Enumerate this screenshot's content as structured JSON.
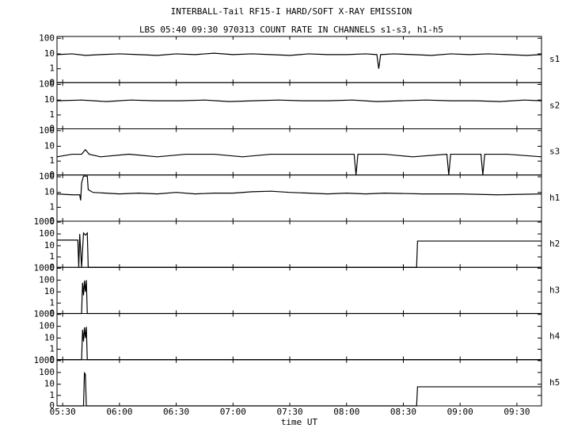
{
  "chart_data": {
    "type": "line",
    "title": "INTERBALL-Tail RF15-I HARD/SOFT X-RAY EMISSION",
    "subtitle": "LBS 05:40 09:30 970313  COUNT RATE IN CHANNELS s1-s3, h1-h5",
    "xlabel": "time UT",
    "xlim": [
      327,
      583
    ],
    "xticks": [
      {
        "value": 330,
        "label": "05:30"
      },
      {
        "value": 360,
        "label": "06:00"
      },
      {
        "value": 390,
        "label": "06:30"
      },
      {
        "value": 420,
        "label": "07:00"
      },
      {
        "value": 450,
        "label": "07:30"
      },
      {
        "value": 480,
        "label": "08:00"
      },
      {
        "value": 510,
        "label": "08:30"
      },
      {
        "value": 540,
        "label": "09:00"
      },
      {
        "value": 570,
        "label": "09:30"
      }
    ],
    "yscale": "log",
    "color": "#000000",
    "panels": [
      {
        "name": "s1",
        "ylim": [
          0,
          130
        ],
        "yticks": [
          0,
          1,
          10,
          100
        ],
        "x": [
          327,
          335,
          342,
          350,
          360,
          370,
          380,
          390,
          400,
          410,
          420,
          430,
          440,
          450,
          460,
          470,
          480,
          490,
          496,
          497,
          498,
          505,
          515,
          525,
          535,
          545,
          555,
          565,
          575,
          583
        ],
        "values": [
          9,
          10,
          8,
          9,
          10,
          9,
          8,
          10,
          9,
          11,
          9,
          10,
          9,
          8,
          10,
          9,
          9,
          10,
          9,
          1,
          9,
          10,
          9,
          8,
          10,
          9,
          10,
          9,
          8,
          9
        ]
      },
      {
        "name": "s2",
        "ylim": [
          0,
          130
        ],
        "yticks": [
          0,
          1,
          10,
          100
        ],
        "x": [
          327,
          340,
          353,
          366,
          379,
          392,
          405,
          418,
          431,
          444,
          457,
          470,
          483,
          496,
          509,
          522,
          535,
          548,
          561,
          574,
          583
        ],
        "values": [
          9,
          10,
          8,
          10,
          9,
          9,
          10,
          8,
          9,
          10,
          9,
          9,
          10,
          8,
          9,
          10,
          9,
          9,
          8,
          10,
          9
        ]
      },
      {
        "name": "s3",
        "ylim": [
          0,
          130
        ],
        "yticks": [
          0,
          1,
          10,
          100
        ],
        "x": [
          327,
          335,
          340,
          342,
          344,
          350,
          365,
          380,
          395,
          410,
          425,
          440,
          455,
          470,
          484,
          485,
          486,
          500,
          515,
          533,
          534,
          535,
          545,
          551,
          552,
          553,
          565,
          583
        ],
        "values": [
          2,
          3,
          3,
          6,
          3,
          2,
          3,
          2,
          3,
          3,
          2,
          3,
          3,
          3,
          3,
          0,
          3,
          3,
          2,
          3,
          0,
          3,
          3,
          3,
          0,
          3,
          3,
          2
        ]
      },
      {
        "name": "h1",
        "ylim": [
          0,
          130
        ],
        "yticks": [
          0,
          1,
          10,
          100
        ],
        "x": [
          327,
          335,
          339,
          339.5,
          340,
          341,
          343,
          343.5,
          346,
          360,
          370,
          380,
          390,
          400,
          410,
          420,
          430,
          440,
          450,
          460,
          470,
          480,
          490,
          500,
          520,
          540,
          560,
          583
        ],
        "values": [
          8,
          7,
          7,
          3,
          40,
          110,
          110,
          15,
          10,
          8,
          9,
          8,
          10,
          8,
          9,
          9,
          11,
          12,
          10,
          9,
          8,
          9,
          8,
          9,
          8,
          8,
          7,
          8
        ]
      },
      {
        "name": "h2",
        "ylim": [
          0,
          1200
        ],
        "yticks": [
          0,
          1,
          10,
          100,
          1000
        ],
        "x": [
          327,
          338,
          338.5,
          339,
          340,
          341,
          342,
          343,
          343.5,
          517,
          517.5,
          583
        ],
        "values": [
          30,
          30,
          0,
          100,
          0,
          120,
          80,
          120,
          0,
          0,
          25,
          25
        ]
      },
      {
        "name": "h3",
        "ylim": [
          0,
          1200
        ],
        "yticks": [
          0,
          1,
          10,
          100,
          1000
        ],
        "x": [
          327,
          340,
          340.5,
          341,
          341.5,
          342,
          342.5,
          343,
          343.5,
          583
        ],
        "values": [
          0,
          0,
          60,
          5,
          90,
          10,
          100,
          0,
          0,
          0
        ]
      },
      {
        "name": "h4",
        "ylim": [
          0,
          1200
        ],
        "yticks": [
          0,
          1,
          10,
          100,
          1000
        ],
        "x": [
          327,
          340,
          340.5,
          341,
          341.5,
          342,
          342.5,
          343,
          343.5,
          583
        ],
        "values": [
          0,
          0,
          50,
          5,
          80,
          10,
          90,
          0,
          0,
          0
        ]
      },
      {
        "name": "h5",
        "ylim": [
          0,
          1200
        ],
        "yticks": [
          0,
          1,
          10,
          100,
          1000
        ],
        "x": [
          327,
          341,
          341.5,
          342,
          342.5,
          517,
          517.5,
          583
        ],
        "values": [
          0,
          0,
          90,
          70,
          0,
          0,
          6,
          6
        ]
      }
    ]
  }
}
